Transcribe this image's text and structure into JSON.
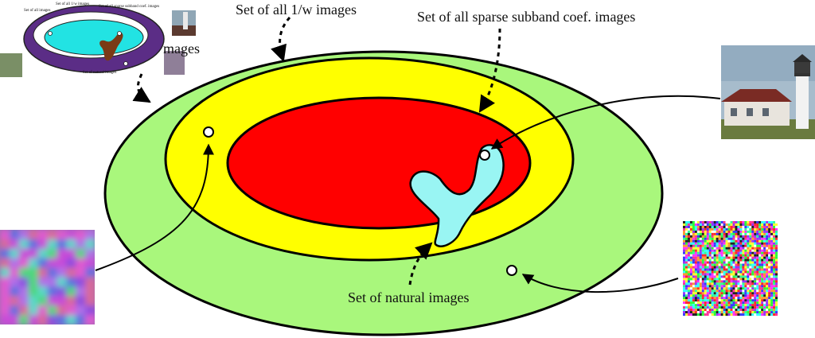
{
  "labels": {
    "inverse_w": "Set of all 1/w images",
    "sparse": "Set of all sparse subband coef. images",
    "natural": "Set of natural images",
    "thumb_tail": "mages"
  },
  "thumbnail_labels": {
    "all_images": "Set of all images",
    "inverse_w": "Set of all 1/w images",
    "sparse": "Set of all sparse subband coef. images",
    "natural": "Set of natural images"
  },
  "colors": {
    "outer_set": "#a9f77c",
    "inverse_w_set": "#ffff00",
    "sparse_set": "#ff0000",
    "natural_set": "#99f5f3",
    "thumb_outer": "#5b2d86",
    "thumb_mid": "#ffffff",
    "thumb_inner": "#22e3e3",
    "thumb_blob": "#7a3a16"
  },
  "icons": {
    "point": "hollow-circle-marker",
    "lighthouse": "lighthouse-photo",
    "noise_smooth": "smooth-noise-image",
    "noise_white": "white-noise-image"
  }
}
